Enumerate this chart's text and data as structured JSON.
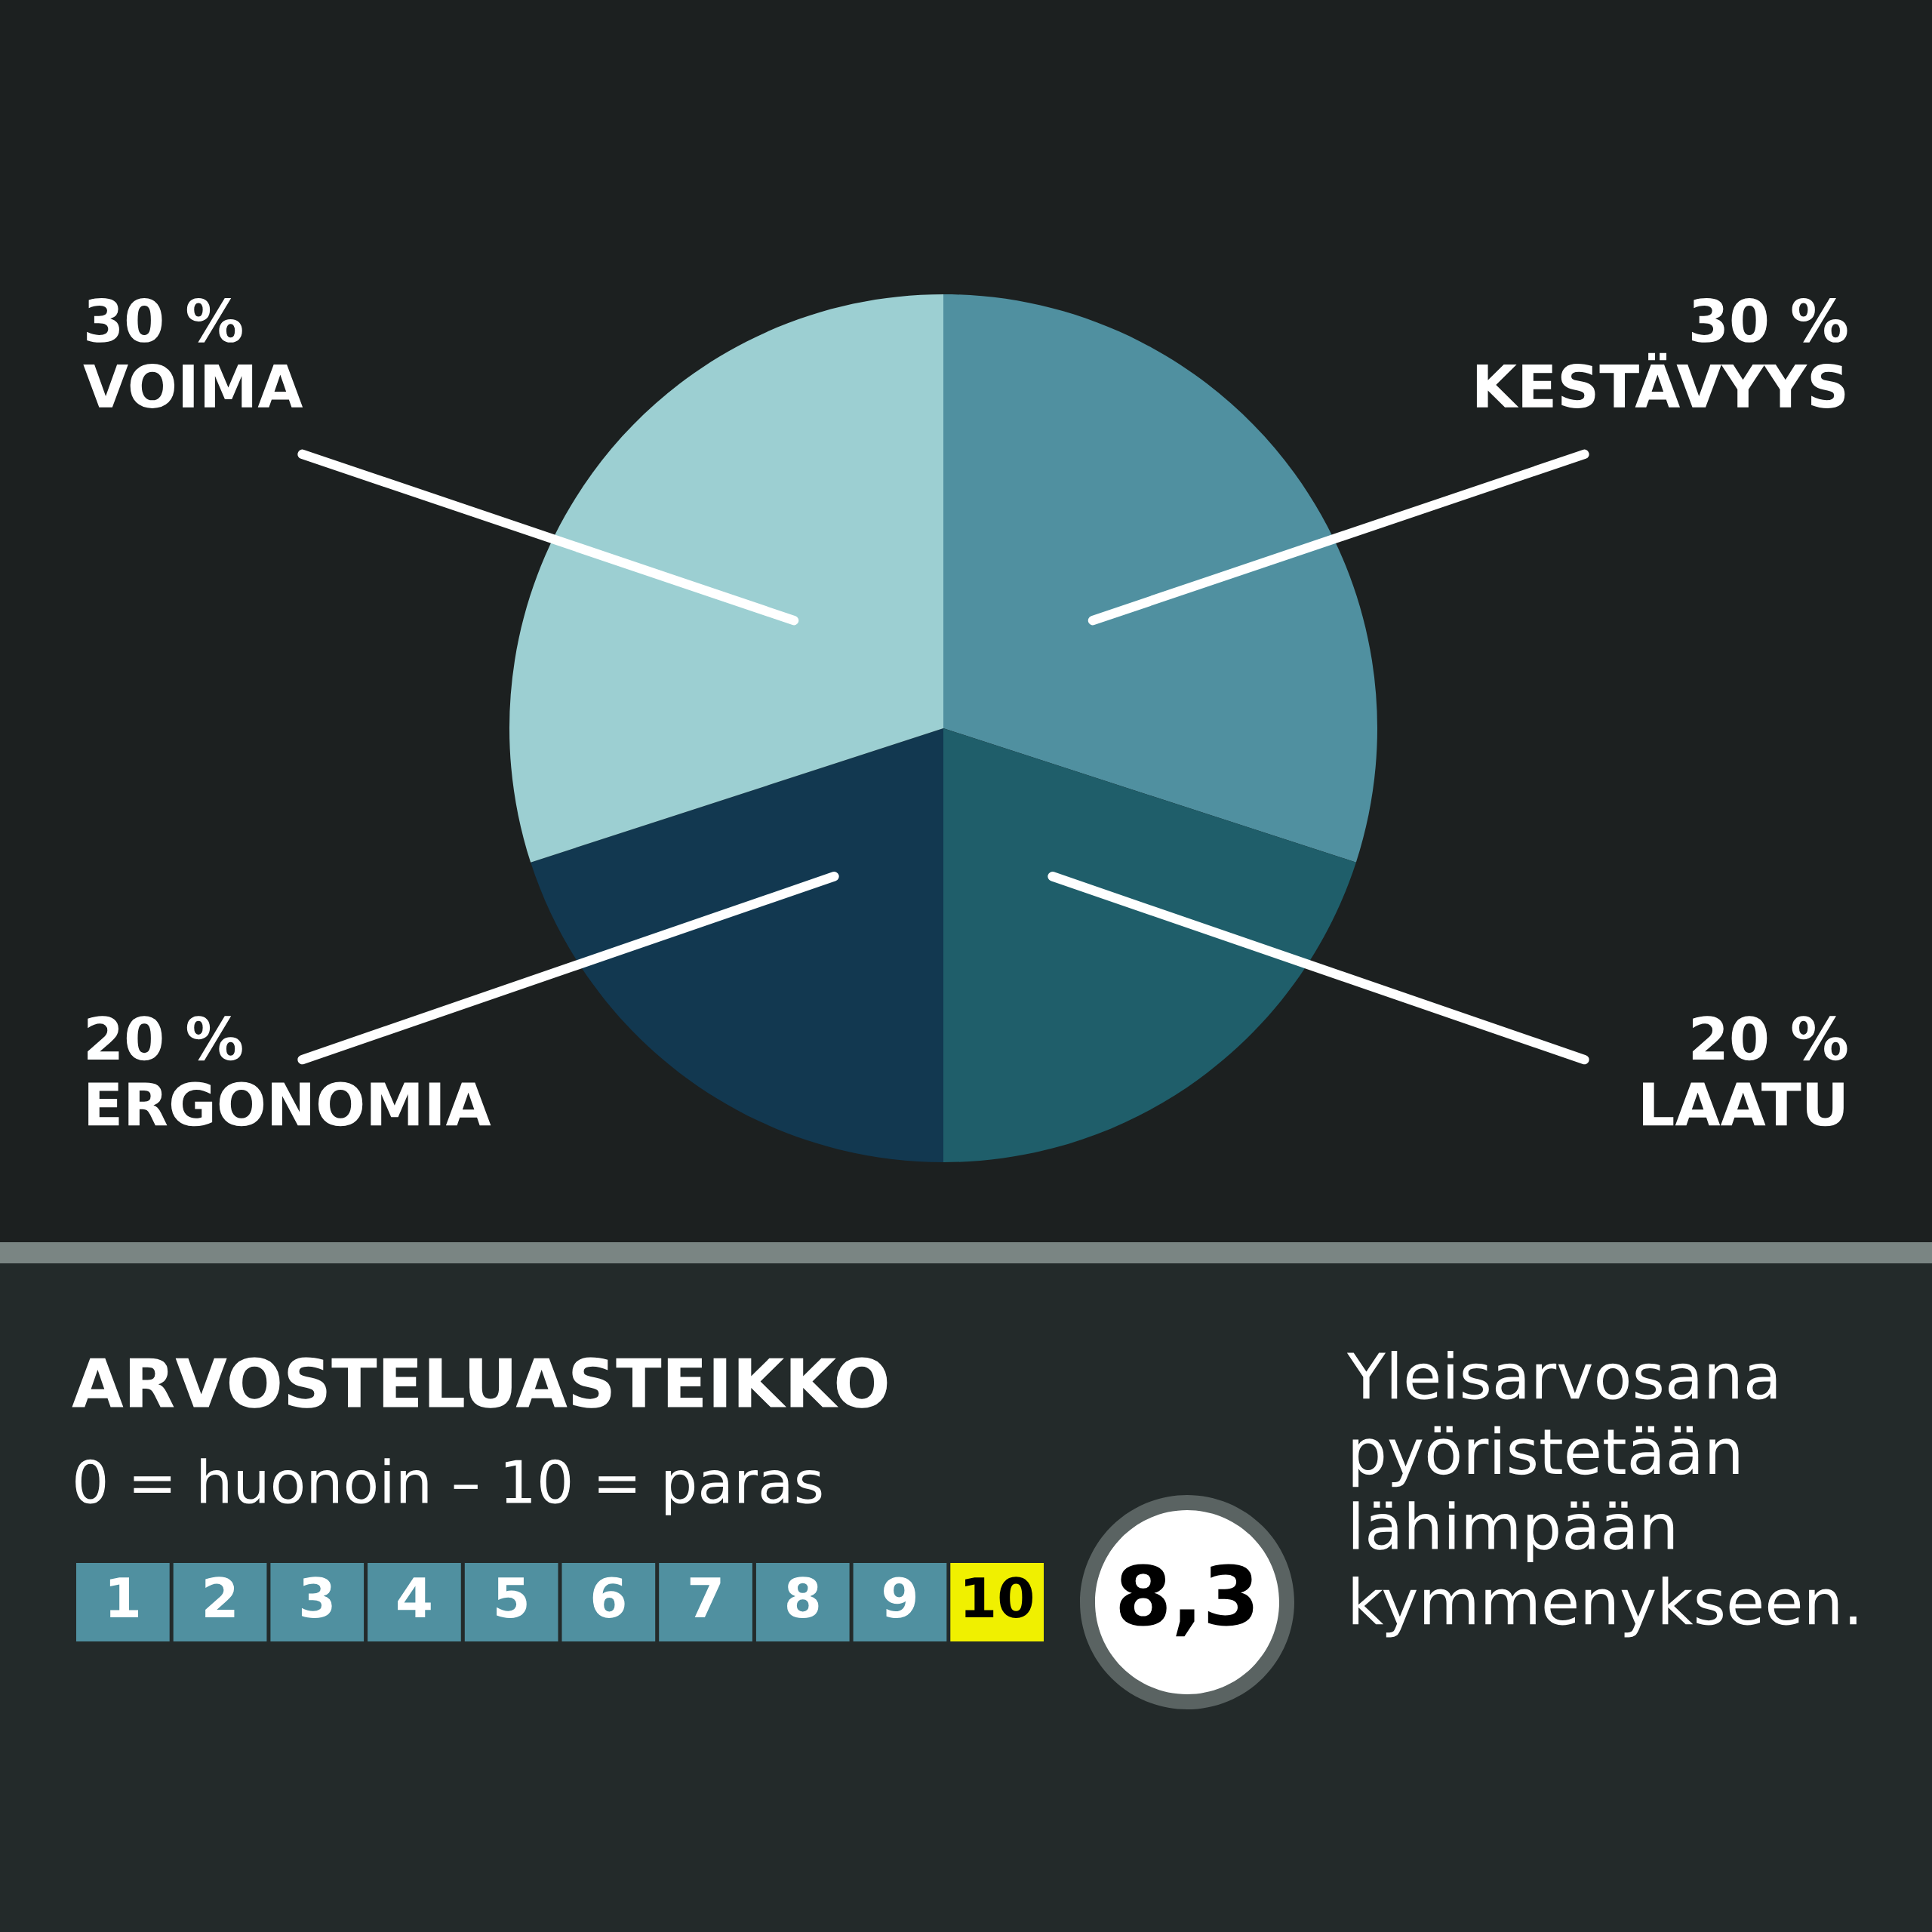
{
  "chart_data": [
    {
      "type": "pie",
      "categories": [
        "KESTÄVYYS",
        "LAATU",
        "ERGONOMIA",
        "VOIMA"
      ],
      "values": [
        30,
        20,
        20,
        30
      ],
      "colors": [
        "#5090a0",
        "#1f5e6a",
        "#123850",
        "#9ccfd2"
      ],
      "value_labels": [
        "30 %",
        "20 %",
        "20 %",
        "30 %"
      ]
    },
    {
      "type": "heatmap",
      "title": "ARVOSTELUASTEIKKO",
      "subtitle": "0 = huonoin – 10 = paras",
      "categories": [
        null,
        null,
        null,
        null,
        null,
        null,
        null,
        null,
        null,
        null
      ],
      "y_categories": [
        null
      ],
      "cells": [
        [
          1,
          2,
          3,
          4,
          5,
          6,
          7,
          8,
          9,
          10
        ]
      ],
      "cell_labels": [
        [
          "1",
          "2",
          "3",
          "4",
          "5",
          "6",
          "7",
          "8",
          "9",
          "10"
        ]
      ],
      "colors": [
        "#5090a0",
        "#5090a0",
        "#5090a0",
        "#5090a0",
        "#5090a0",
        "#5090a0",
        "#5090a0",
        "#5090a0",
        "#5090a0",
        "#f0f000"
      ],
      "annotations": [
        "8,3",
        "Yleisarvosana\npyöristetään\nlähimpään\nkymmenykseen."
      ]
    }
  ]
}
